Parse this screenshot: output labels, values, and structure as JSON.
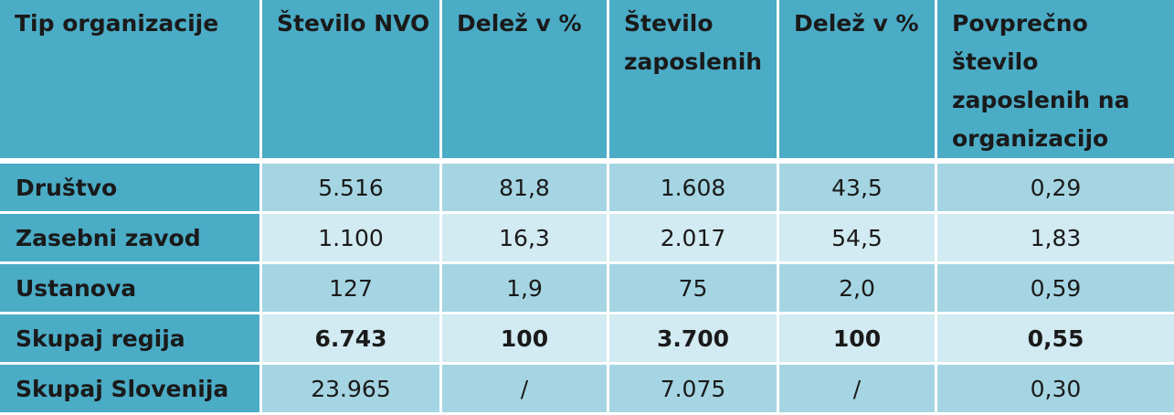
{
  "table": {
    "headers": [
      "Tip organizacije",
      "Število NVO",
      "Delež v %",
      "Število zaposlenih",
      "Delež v %",
      "Povprečno število zaposlenih na organizacijo"
    ],
    "rows": [
      [
        "Društvo",
        "5.516",
        "81,8",
        "1.608",
        "43,5",
        "0,29"
      ],
      [
        "Zasebni zavod",
        "1.100",
        "16,3",
        "2.017",
        "54,5",
        "1,83"
      ],
      [
        "Ustanova",
        "127",
        "1,9",
        "75",
        "2,0",
        "0,59"
      ],
      [
        "Skupaj regija",
        "6.743",
        "100",
        "3.700",
        "100",
        "0,55"
      ],
      [
        "Skupaj Slovenija",
        "23.965",
        "/",
        "7.075",
        "/",
        "0,30"
      ]
    ]
  },
  "colors": {
    "header_bg": "#4bacc6",
    "row_dark": "#a5d5e2",
    "row_light": "#d2eaf1"
  }
}
